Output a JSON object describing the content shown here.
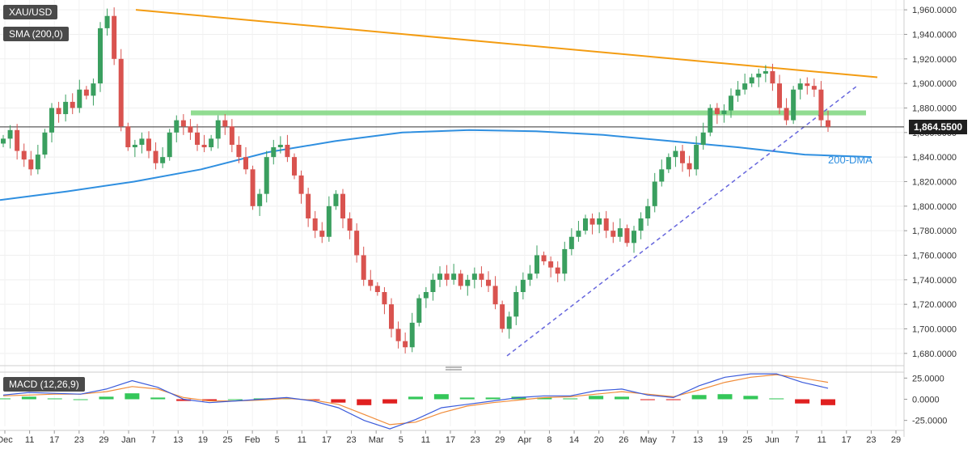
{
  "legend": {
    "symbol": "XAU/USD",
    "sma": "SMA (200,0)",
    "macd": "MACD (12,26,9)"
  },
  "annotations": {
    "dma_label": "200-DMA",
    "last_price": "1,864.5500"
  },
  "colors": {
    "up": "#3a9f5f",
    "down": "#d9534f",
    "trendline": "#f39c12",
    "support_zone": "#7ed67e",
    "sma": "#2f8fe0",
    "support_dash": "#6666dd",
    "macd_line": "#3b5bdb",
    "signal_line": "#f08c3a"
  },
  "chart_data": [
    {
      "type": "candlestick",
      "title": "XAU/USD",
      "x_ticks": [
        "Dec",
        "11",
        "17",
        "23",
        "29",
        "Jan",
        "7",
        "13",
        "19",
        "25",
        "Feb",
        "5",
        "11",
        "17",
        "23",
        "Mar",
        "5",
        "11",
        "17",
        "23",
        "29",
        "Apr",
        "8",
        "14",
        "20",
        "26",
        "May",
        "7",
        "13",
        "19",
        "25",
        "Jun",
        "7",
        "11",
        "17",
        "23",
        "29"
      ],
      "y_ticks": [
        "1,960.0000",
        "1,940.0000",
        "1,920.0000",
        "1,900.0000",
        "1,880.0000",
        "1,860.0000",
        "1,840.0000",
        "1,820.0000",
        "1,800.0000",
        "1,780.0000",
        "1,760.0000",
        "1,740.0000",
        "1,720.0000",
        "1,700.0000",
        "1,680.0000"
      ],
      "ylim": [
        1670,
        1968
      ],
      "close_path": [
        1855,
        1862,
        1845,
        1838,
        1830,
        1842,
        1860,
        1880,
        1875,
        1885,
        1880,
        1895,
        1890,
        1900,
        1945,
        1955,
        1920,
        1865,
        1848,
        1850,
        1855,
        1845,
        1835,
        1840,
        1860,
        1870,
        1865,
        1860,
        1850,
        1848,
        1855,
        1870,
        1865,
        1850,
        1840,
        1830,
        1800,
        1810,
        1840,
        1848,
        1850,
        1840,
        1825,
        1810,
        1790,
        1780,
        1775,
        1800,
        1810,
        1790,
        1780,
        1760,
        1740,
        1735,
        1730,
        1720,
        1700,
        1690,
        1685,
        1705,
        1725,
        1730,
        1740,
        1745,
        1740,
        1745,
        1735,
        1740,
        1745,
        1740,
        1735,
        1720,
        1700,
        1710,
        1730,
        1740,
        1745,
        1760,
        1755,
        1750,
        1745,
        1765,
        1775,
        1780,
        1790,
        1785,
        1790,
        1780,
        1775,
        1782,
        1770,
        1780,
        1790,
        1800,
        1820,
        1830,
        1840,
        1845,
        1835,
        1830,
        1850,
        1860,
        1880,
        1875,
        1878,
        1890,
        1895,
        1900,
        1905,
        1908,
        1910,
        1900,
        1880,
        1870,
        1895,
        1900,
        1898,
        1895,
        1870,
        1864.55
      ],
      "sma_200": [
        1805,
        1812,
        1820,
        1830,
        1844,
        1853,
        1860,
        1862,
        1861,
        1858,
        1853,
        1848,
        1842,
        1840
      ],
      "resistance_line": {
        "from": 1960,
        "to": 1905
      },
      "support_zone": {
        "low": 1874,
        "high": 1878
      },
      "support_line": {
        "from": 1678,
        "to": 1898
      },
      "last_price": 1864.55
    },
    {
      "type": "macd",
      "title": "MACD (12,26,9)",
      "y_ticks": [
        "25.0000",
        "0.0000",
        "-25.0000"
      ],
      "ylim": [
        -32,
        32
      ],
      "macd": [
        5,
        8,
        7,
        6,
        12,
        22,
        14,
        0,
        -4,
        -2,
        0,
        2,
        -2,
        -10,
        -25,
        -35,
        -24,
        -10,
        -6,
        -2,
        2,
        4,
        4,
        10,
        12,
        5,
        2,
        16,
        26,
        30,
        30,
        20,
        13
      ],
      "signal": [
        4,
        5,
        6,
        6,
        9,
        15,
        12,
        2,
        -2,
        -2,
        -1,
        1,
        -1,
        -6,
        -18,
        -30,
        -27,
        -16,
        -8,
        -4,
        -1,
        2,
        3,
        6,
        9,
        6,
        3,
        11,
        20,
        26,
        29,
        25,
        20
      ],
      "histogram": [
        1,
        3,
        1,
        0,
        3,
        7,
        2,
        -2,
        -2,
        0,
        1,
        1,
        -1,
        -4,
        -7,
        -5,
        3,
        6,
        2,
        2,
        3,
        2,
        1,
        4,
        3,
        -1,
        -1,
        5,
        6,
        4,
        1,
        -5,
        -7
      ]
    }
  ]
}
